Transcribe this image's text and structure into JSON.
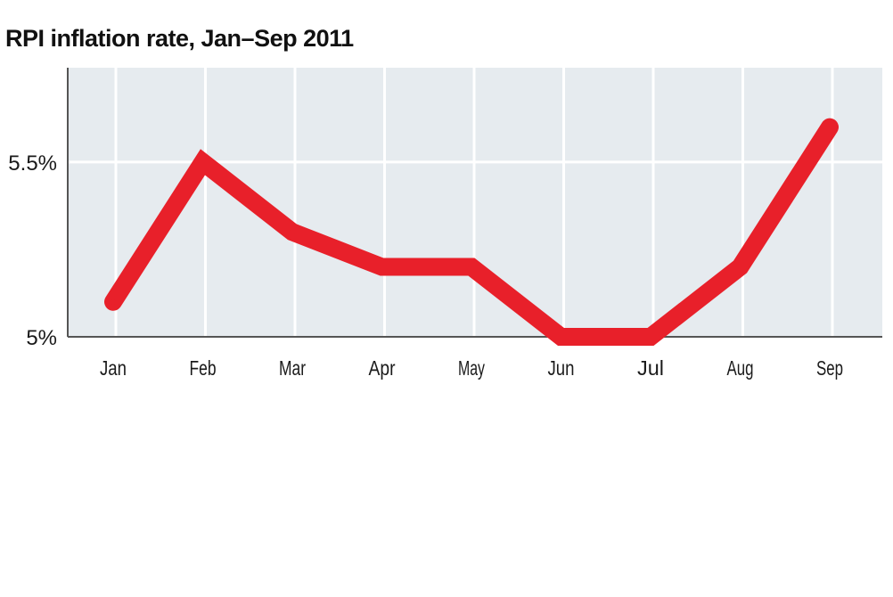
{
  "chart_data": {
    "type": "line",
    "title": "RPI inflation rate, Jan–Sep 2011",
    "xlabel": "",
    "ylabel": "",
    "categories": [
      "Jan",
      "Feb",
      "Mar",
      "Apr",
      "May",
      "Jun",
      "Jul",
      "Aug",
      "Sep"
    ],
    "series": [
      {
        "values": [
          5.1,
          5.5,
          5.3,
          5.2,
          5.2,
          5.0,
          5.0,
          5.2,
          5.6
        ]
      }
    ],
    "ylim": [
      5.0,
      5.77
    ],
    "yticks": [
      5.0,
      5.5
    ],
    "ytick_labels": [
      "5%",
      "5.5%"
    ],
    "grid": true,
    "legend": "none",
    "colors": {
      "line": "#e8202a",
      "plot_background": "#e6ebef",
      "grid": "#ffffff",
      "axis": "#555555"
    }
  }
}
